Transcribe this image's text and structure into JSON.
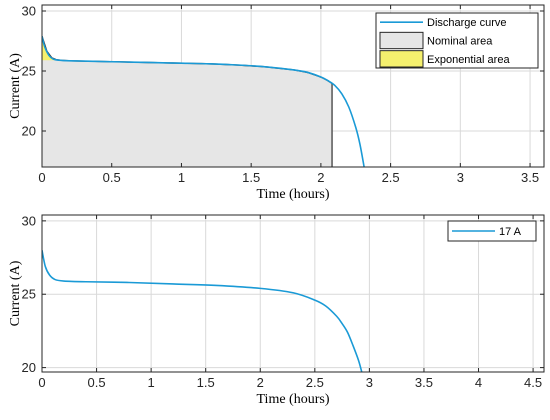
{
  "chart_data": [
    {
      "type": "line",
      "xlabel": "Time (hours)",
      "ylabel": "Current (A)",
      "xlim": [
        0,
        3.6
      ],
      "ylim": [
        17,
        30.5
      ],
      "xticks": [
        0,
        0.5,
        1,
        1.5,
        2,
        2.5,
        3,
        3.5
      ],
      "xtick_labels": [
        "0",
        "0.5",
        "1",
        "1.5",
        "2",
        "2.5",
        "3",
        "3.5"
      ],
      "yticks": [
        20,
        25,
        30
      ],
      "ytick_labels": [
        "20",
        "25",
        "30"
      ],
      "grid": true,
      "legend_position": "top-right",
      "series": [
        {
          "name": "Discharge curve",
          "color": "#1a9ad6",
          "x": [
            0,
            0.02,
            0.05,
            0.08,
            0.12,
            0.2,
            0.4,
            0.6,
            0.8,
            1.0,
            1.2,
            1.4,
            1.6,
            1.8,
            1.9,
            2.0,
            2.05,
            2.1,
            2.15,
            2.2,
            2.25,
            2.28,
            2.31
          ],
          "y": [
            27.9,
            27.0,
            26.3,
            26.0,
            25.9,
            25.85,
            25.8,
            25.75,
            25.7,
            25.65,
            25.6,
            25.5,
            25.35,
            25.1,
            24.9,
            24.5,
            24.2,
            23.8,
            23.1,
            22.0,
            20.3,
            18.9,
            17.0
          ]
        }
      ],
      "areas": [
        {
          "name": "Nominal area",
          "color": "#e6e6e6",
          "x_end": 2.08
        },
        {
          "name": "Exponential area",
          "color": "#f5f06e",
          "x_end": 0.12,
          "y_floor": 25.9
        }
      ]
    },
    {
      "type": "line",
      "xlabel": "Time (hours)",
      "ylabel": "Current (A)",
      "xlim": [
        0,
        4.6
      ],
      "ylim": [
        19.7,
        30.4
      ],
      "xticks": [
        0,
        0.5,
        1,
        1.5,
        2,
        2.5,
        3,
        3.5,
        4,
        4.5
      ],
      "xtick_labels": [
        "0",
        "0.5",
        "1",
        "1.5",
        "2",
        "2.5",
        "3",
        "3.5",
        "4",
        "4.5"
      ],
      "yticks": [
        20,
        25,
        30
      ],
      "ytick_labels": [
        "20",
        "25",
        "30"
      ],
      "grid": true,
      "legend_position": "top-right",
      "series": [
        {
          "name": "17 A",
          "color": "#1a9ad6",
          "x": [
            0,
            0.03,
            0.07,
            0.12,
            0.2,
            0.4,
            0.8,
            1.2,
            1.6,
            2.0,
            2.3,
            2.5,
            2.6,
            2.7,
            2.75,
            2.8,
            2.85,
            2.9,
            2.93
          ],
          "y": [
            28.0,
            26.9,
            26.3,
            26.0,
            25.9,
            25.85,
            25.8,
            25.7,
            25.6,
            25.4,
            25.1,
            24.6,
            24.2,
            23.5,
            23.0,
            22.4,
            21.5,
            20.5,
            19.7
          ]
        }
      ]
    }
  ]
}
